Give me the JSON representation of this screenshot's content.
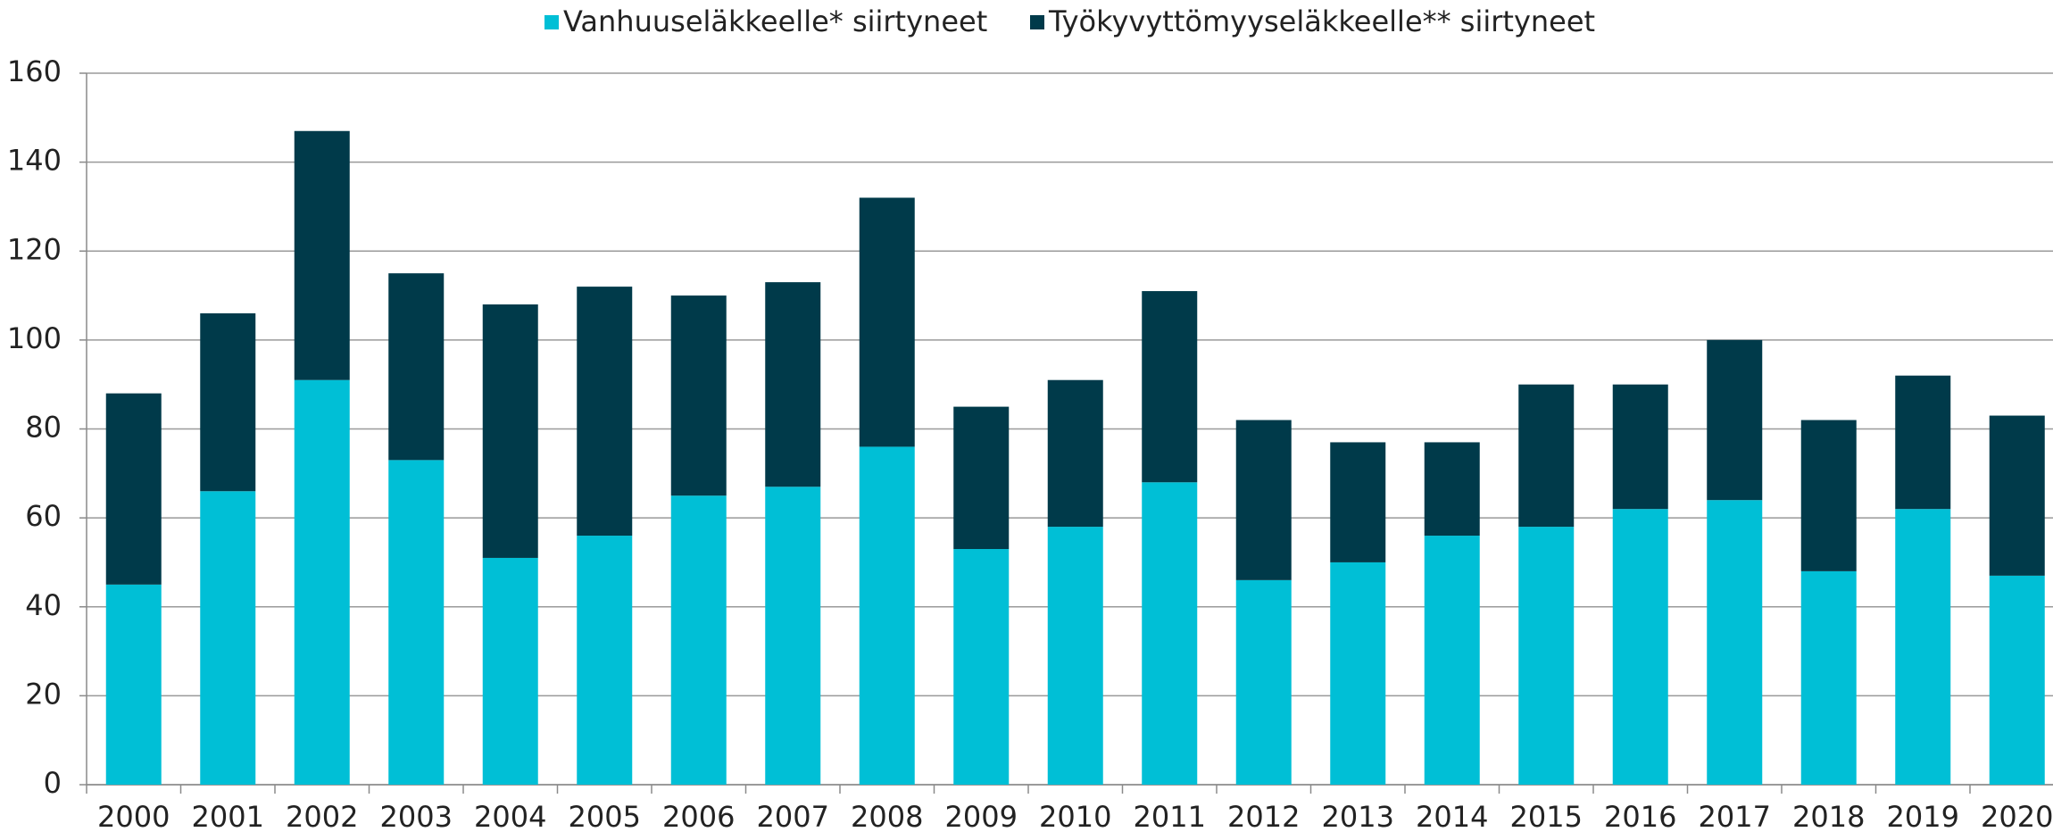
{
  "chart_data": {
    "type": "stacked_bar",
    "categories": [
      "2000",
      "2001",
      "2002",
      "2003",
      "2004",
      "2005",
      "2006",
      "2007",
      "2008",
      "2009",
      "2010",
      "2011",
      "2012",
      "2013",
      "2014",
      "2015",
      "2016",
      "2017",
      "2018",
      "2019",
      "2020"
    ],
    "series": [
      {
        "name": "Vanhuuseläkkeelle* siirtyneet",
        "color": "#00bfd6",
        "values": [
          45,
          66,
          91,
          73,
          51,
          56,
          65,
          67,
          76,
          53,
          58,
          68,
          46,
          50,
          56,
          58,
          62,
          64,
          48,
          62,
          47
        ]
      },
      {
        "name": "Työkyvyttömyyseläkkeelle** siirtyneet",
        "color": "#003a4a",
        "values": [
          43,
          40,
          56,
          42,
          57,
          56,
          45,
          46,
          56,
          32,
          33,
          43,
          36,
          27,
          21,
          32,
          28,
          36,
          34,
          30,
          36
        ]
      }
    ],
    "ylim": [
      0,
      160
    ],
    "yticks": [
      0,
      20,
      40,
      60,
      80,
      100,
      120,
      140,
      160
    ],
    "grid": true,
    "legend": "top"
  }
}
